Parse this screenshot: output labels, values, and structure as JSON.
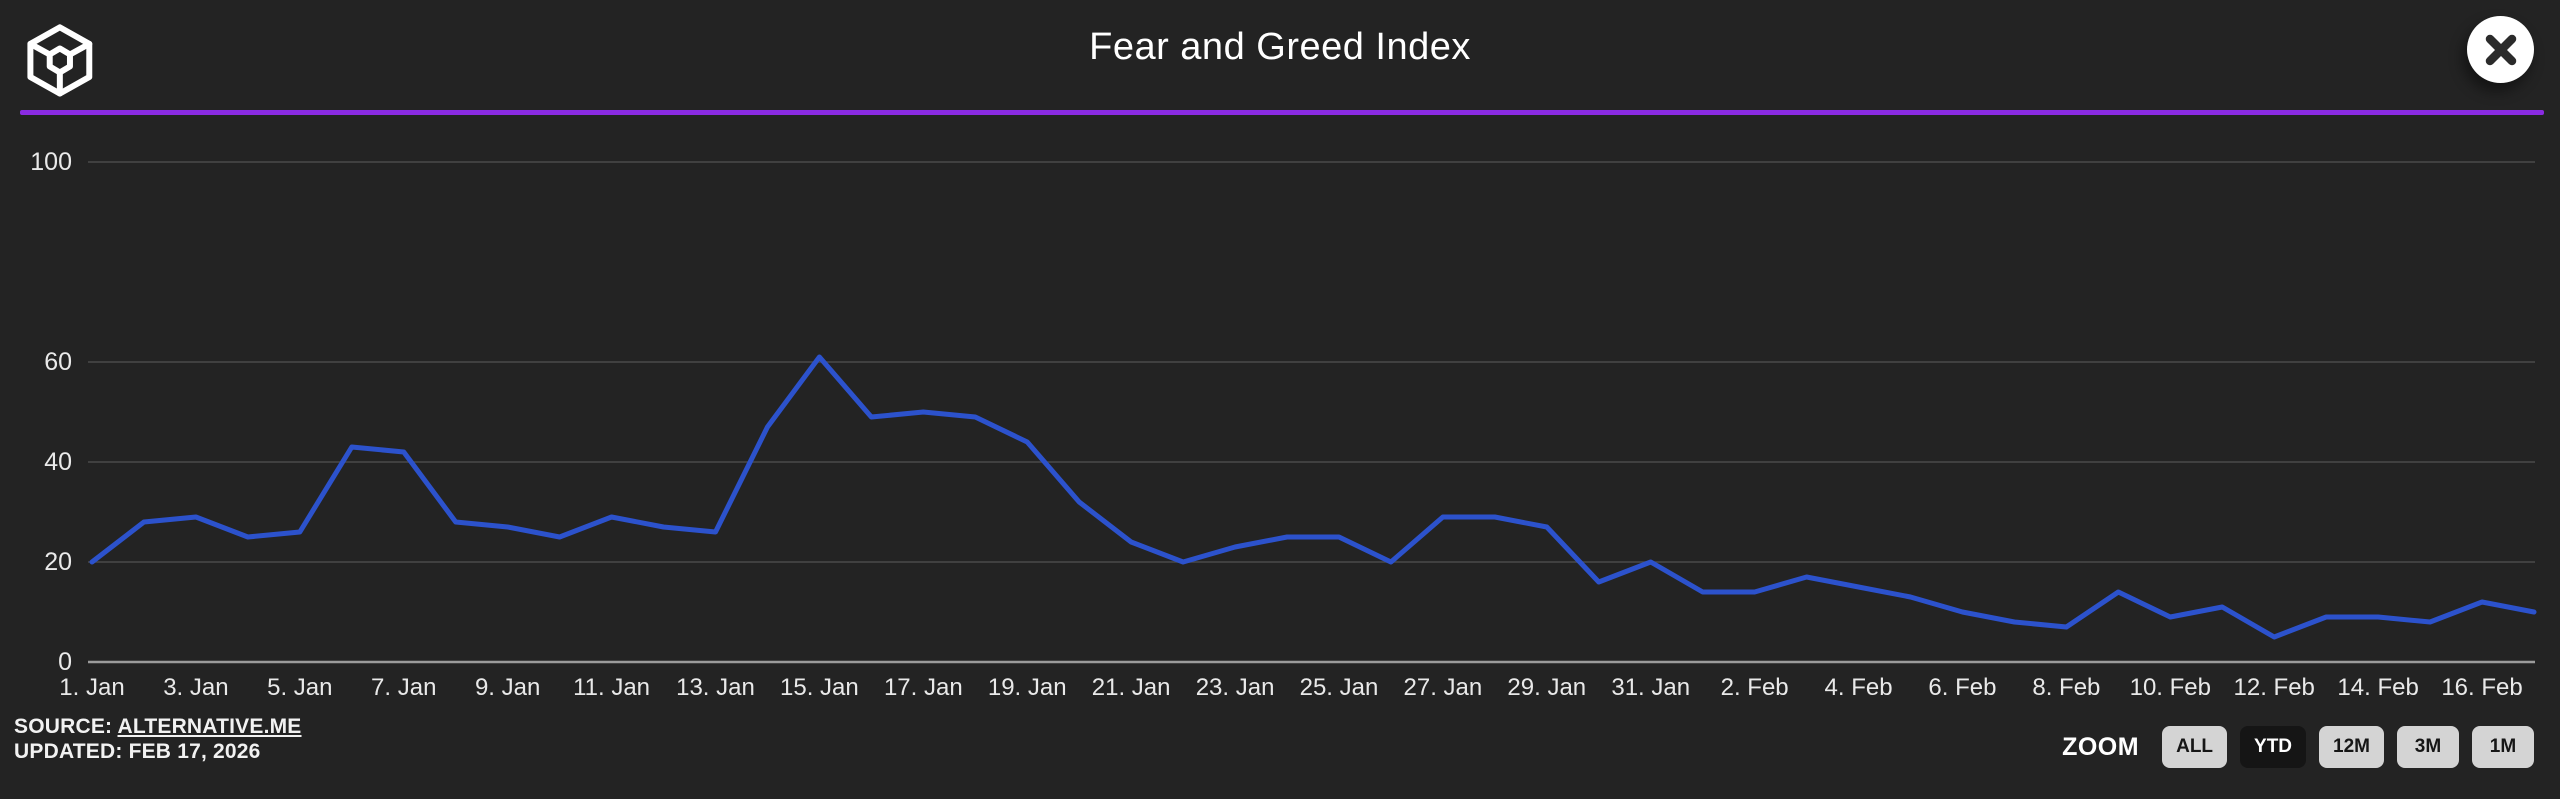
{
  "header": {
    "title": "Fear and Greed Index"
  },
  "icons": {
    "logo": "cube-wireframe",
    "close": "x-circle"
  },
  "footer": {
    "source_prefix": "SOURCE: ",
    "source_link": "ALTERNATIVE.ME",
    "updated": "UPDATED: FEB 17, 2026"
  },
  "zoom": {
    "label": "ZOOM",
    "selected": "YTD",
    "buttons": [
      {
        "label": "ALL"
      },
      {
        "label": "YTD"
      },
      {
        "label": "12M"
      },
      {
        "label": "3M"
      },
      {
        "label": "1M"
      }
    ]
  },
  "chart_data": {
    "type": "line",
    "title": "Fear and Greed Index",
    "x_interval": "daily",
    "x_range": [
      "1. Jan",
      "17. Feb"
    ],
    "values": [
      20,
      28,
      29,
      25,
      26,
      43,
      42,
      28,
      27,
      25,
      29,
      27,
      26,
      47,
      61,
      49,
      50,
      49,
      44,
      32,
      24,
      20,
      23,
      25,
      25,
      20,
      29,
      29,
      27,
      16,
      20,
      14,
      14,
      17,
      15,
      13,
      10,
      8,
      7,
      14,
      9,
      11,
      5,
      9,
      9,
      8,
      12,
      10
    ],
    "xtick_labels": [
      "1. Jan",
      "3. Jan",
      "5. Jan",
      "7. Jan",
      "9. Jan",
      "11. Jan",
      "13. Jan",
      "15. Jan",
      "17. Jan",
      "19. Jan",
      "21. Jan",
      "23. Jan",
      "25. Jan",
      "27. Jan",
      "29. Jan",
      "31. Jan",
      "2. Feb",
      "4. Feb",
      "6. Feb",
      "8. Feb",
      "10. Feb",
      "12. Feb",
      "14. Feb",
      "16. Feb"
    ],
    "yticks": [
      0,
      20,
      40,
      60,
      100
    ],
    "ylim": [
      0,
      100
    ],
    "grid_on": true,
    "legend": "none",
    "line_color": "#2c52cc",
    "grid_color": "#4a4a4a",
    "axis_line_color": "#9b9b9b",
    "background_color": "#232323",
    "accent_purple": "#8a2be2"
  }
}
